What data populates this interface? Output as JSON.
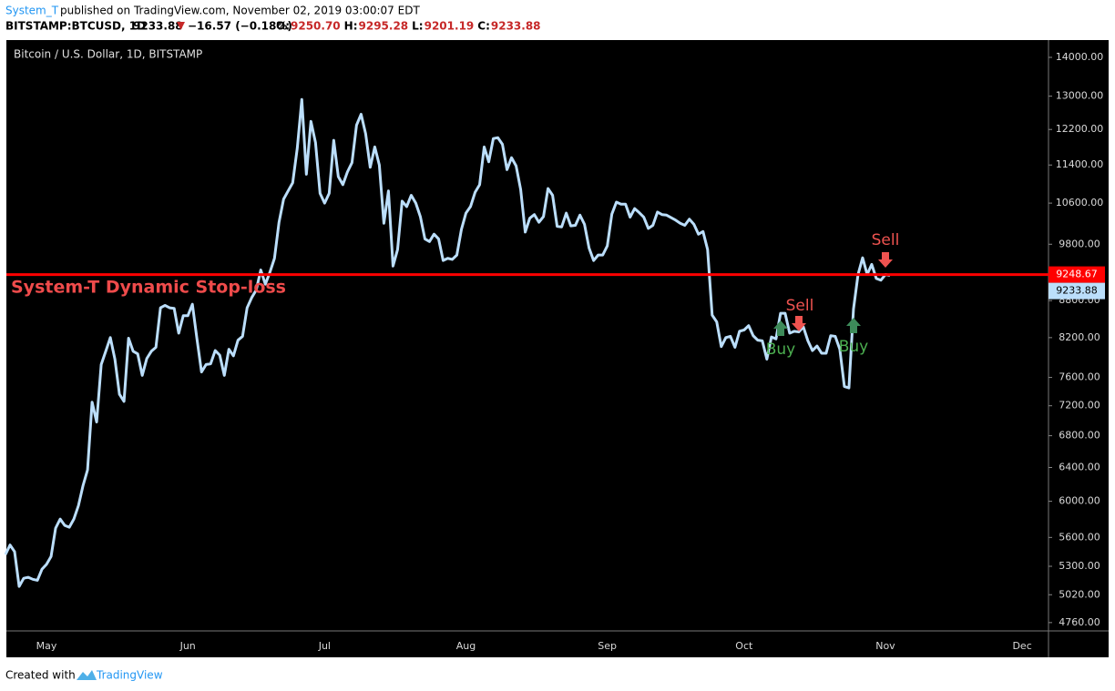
{
  "header": {
    "author": "System_T",
    "published": "published on TradingView.com, November 02, 2019 03:00:07 EDT",
    "symbol": "BITSTAMP:BTCUSD, 1D",
    "price": "9233.88",
    "change": "−16.57 (−0.18%)",
    "ohlc": [
      {
        "key": "O:",
        "value": "9250.70"
      },
      {
        "key": "H:",
        "value": "9295.28"
      },
      {
        "key": "L:",
        "value": "9201.19"
      },
      {
        "key": "C:",
        "value": "9233.88"
      }
    ]
  },
  "footer": {
    "created": "Created with",
    "brand": "TradingView"
  },
  "chart_data": {
    "type": "line",
    "log_scale": true,
    "categories": [
      null,
      null,
      null,
      null,
      null,
      null,
      null,
      null,
      null,
      "May",
      null,
      null,
      null,
      null,
      null,
      null,
      null,
      null,
      null,
      null,
      null,
      null,
      null,
      null,
      null,
      null,
      null,
      null,
      null,
      null,
      null,
      null,
      null,
      null,
      null,
      null,
      null,
      null,
      null,
      null,
      "Jun",
      null,
      null,
      null,
      null,
      null,
      null,
      null,
      null,
      null,
      null,
      null,
      null,
      null,
      null,
      null,
      null,
      null,
      null,
      null,
      null,
      null,
      null,
      null,
      null,
      null,
      null,
      null,
      null,
      null,
      "Jul",
      null,
      null,
      null,
      null,
      null,
      null,
      null,
      null,
      null,
      null,
      null,
      null,
      null,
      null,
      null,
      null,
      null,
      null,
      null,
      null,
      null,
      null,
      null,
      null,
      null,
      null,
      null,
      null,
      null,
      null,
      "Aug",
      null,
      null,
      null,
      null,
      null,
      null,
      null,
      null,
      null,
      null,
      null,
      null,
      null,
      null,
      null,
      null,
      null,
      null,
      null,
      null,
      null,
      null,
      null,
      null,
      null,
      null,
      null,
      null,
      null,
      null,
      "Sep",
      null,
      null,
      null,
      null,
      null,
      null,
      null,
      null,
      null,
      null,
      null,
      null,
      null,
      null,
      null,
      null,
      null,
      null,
      null,
      null,
      null,
      null,
      null,
      null,
      null,
      null,
      null,
      null,
      null,
      "Oct",
      null,
      null,
      null,
      null,
      null,
      null,
      null,
      null,
      null,
      null,
      null,
      null,
      null,
      null,
      null,
      null,
      null,
      null,
      null,
      null,
      null,
      null,
      null,
      null,
      null,
      null,
      null,
      null,
      null,
      null,
      "Nov",
      null,
      null,
      null,
      null,
      null,
      null,
      null,
      null,
      null,
      null,
      null,
      null,
      null,
      null,
      null,
      null,
      null,
      null,
      null,
      null,
      null,
      null,
      null,
      null,
      null,
      null,
      null,
      null,
      null,
      "Dec",
      null,
      null,
      null,
      null,
      null,
      null
    ],
    "series": [
      {
        "name": "Bitcoin / U.S. Dollar, 1D, BITSTAMP",
        "color": "#bbdefb",
        "values": [
          5420,
          5520,
          5450,
          5100,
          5180,
          5190,
          5170,
          5160,
          5270,
          5320,
          5400,
          5700,
          5800,
          5730,
          5710,
          5800,
          5950,
          6180,
          6370,
          7250,
          6980,
          7790,
          7990,
          8200,
          7870,
          7360,
          7260,
          8190,
          7990,
          7950,
          7630,
          7880,
          7990,
          8050,
          8680,
          8720,
          8680,
          8670,
          8270,
          8550,
          8550,
          8740,
          8180,
          7680,
          7790,
          7800,
          8000,
          7930,
          7630,
          8020,
          7920,
          8160,
          8220,
          8680,
          8850,
          8980,
          9330,
          9080,
          9290,
          9540,
          10220,
          10680,
          10850,
          11020,
          11770,
          12920,
          11200,
          12390,
          11900,
          10800,
          10600,
          10800,
          11950,
          11150,
          10980,
          11250,
          11450,
          12300,
          12560,
          12100,
          11350,
          11800,
          11400,
          10200,
          10850,
          9400,
          9700,
          10640,
          10530,
          10760,
          10600,
          10330,
          9900,
          9850,
          9990,
          9900,
          9500,
          9540,
          9520,
          9600,
          10080,
          10400,
          10530,
          10820,
          10980,
          11800,
          11470,
          11990,
          12010,
          11860,
          11300,
          11560,
          11380,
          10880,
          10030,
          10300,
          10370,
          10220,
          10330,
          10900,
          10760,
          10140,
          10130,
          10400,
          10150,
          10160,
          10360,
          10180,
          9730,
          9500,
          9600,
          9600,
          9770,
          10380,
          10620,
          10580,
          10580,
          10320,
          10490,
          10410,
          10320,
          10100,
          10160,
          10420,
          10370,
          10360,
          10310,
          10260,
          10200,
          10160,
          10280,
          10180,
          9990,
          10040,
          9700,
          8560,
          8450,
          8060,
          8200,
          8220,
          8050,
          8300,
          8320,
          8390,
          8230,
          8160,
          8150,
          7870,
          8210,
          8180,
          8590,
          8590,
          8270,
          8300,
          8290,
          8370,
          8150,
          8000,
          8070,
          7960,
          7960,
          8230,
          8220,
          8020,
          7470,
          7450,
          8660,
          9250,
          9550,
          9250,
          9430,
          9180,
          9150,
          9250,
          9233.88,
          null,
          null,
          null,
          null,
          null,
          null,
          null,
          null,
          null,
          null,
          null,
          null,
          null,
          null,
          null,
          null,
          null,
          null,
          null,
          null,
          null,
          null,
          null,
          null,
          null,
          null,
          null,
          null,
          null,
          null,
          null,
          null,
          null,
          null,
          null
        ]
      }
    ],
    "ylim": [
      4685,
      14470
    ],
    "yticks": [
      {
        "value": 4760,
        "label": "4760.00"
      },
      {
        "value": 5020,
        "label": "5020.00"
      },
      {
        "value": 5300,
        "label": "5300.00"
      },
      {
        "value": 5600,
        "label": "5600.00"
      },
      {
        "value": 6000,
        "label": "6000.00"
      },
      {
        "value": 6400,
        "label": "6400.00"
      },
      {
        "value": 6800,
        "label": "6800.00"
      },
      {
        "value": 7200,
        "label": "7200.00"
      },
      {
        "value": 7600,
        "label": "7600.00"
      },
      {
        "value": 8200,
        "label": "8200.00"
      },
      {
        "value": 8800,
        "label": "8800.00"
      },
      {
        "value": 9800,
        "label": "9800.00"
      },
      {
        "value": 10600,
        "label": "10600.00"
      },
      {
        "value": 11400,
        "label": "11400.00"
      },
      {
        "value": 12200,
        "label": "12200.00"
      },
      {
        "value": 13000,
        "label": "13000.00"
      },
      {
        "value": 14000,
        "label": "14000.00"
      }
    ],
    "stop_loss": {
      "label": "System-T Dynamic Stop-loss",
      "value": 9248.67,
      "color": "#ff0000"
    },
    "annotations": [
      {
        "text": "Buy"
      },
      {
        "text": "Sell"
      },
      {
        "text": "Buy"
      },
      {
        "text": "Sell"
      }
    ]
  }
}
